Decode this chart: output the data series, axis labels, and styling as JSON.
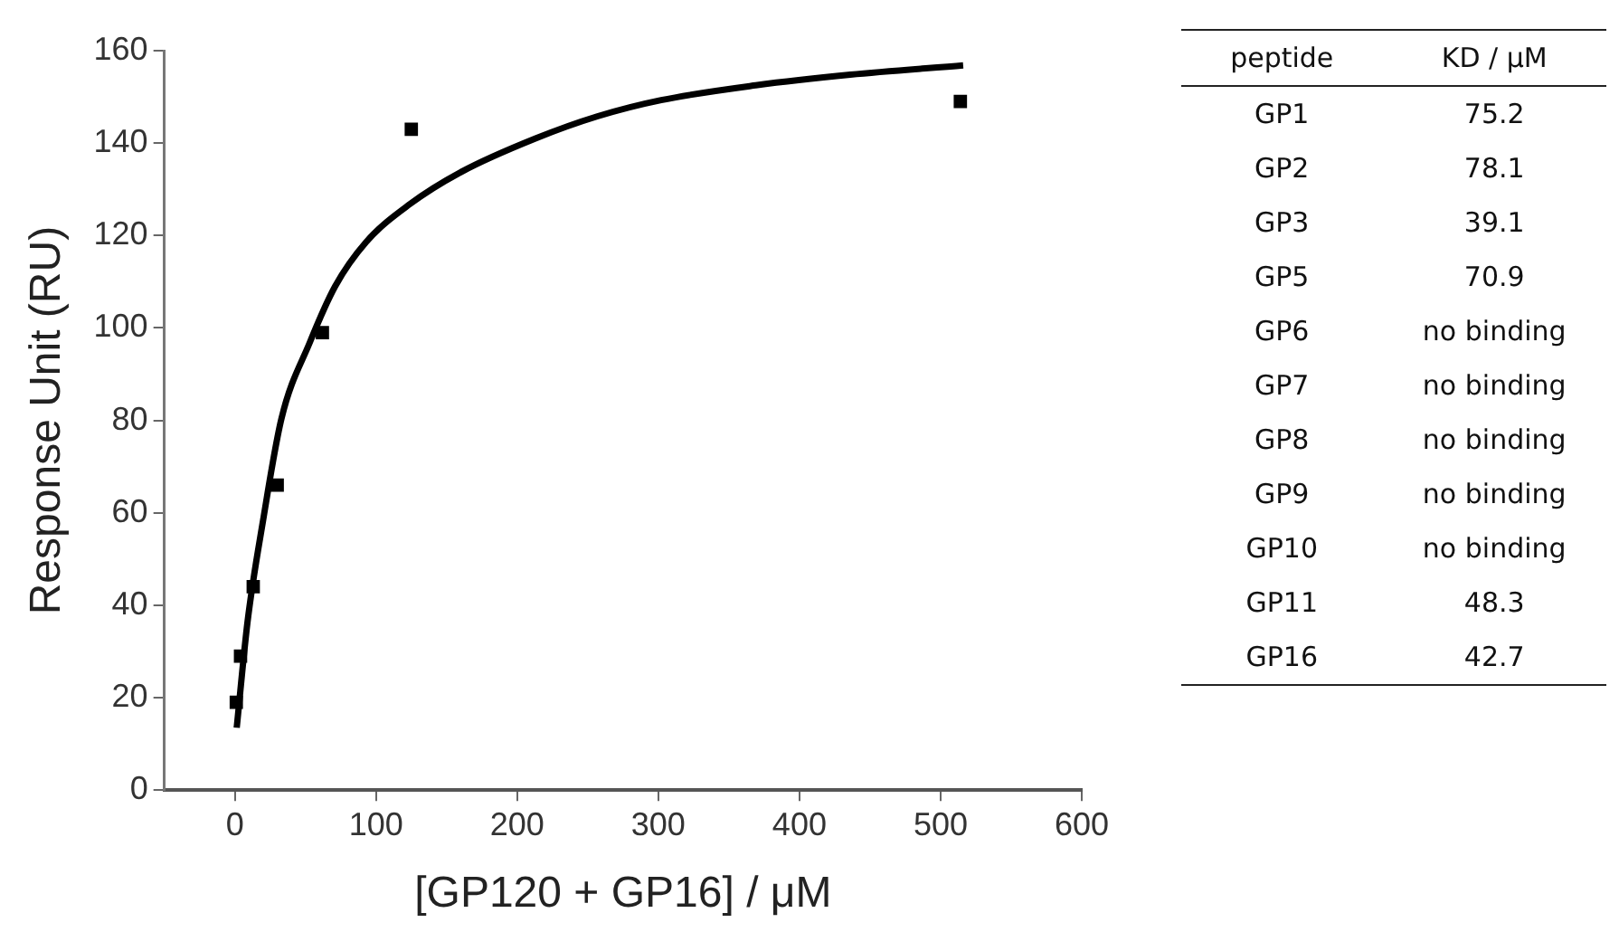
{
  "chart_data": [
    {
      "type": "scatter",
      "xlabel": "[GP120 + GP16] / μM",
      "ylabel": "Response Unit (RU)",
      "xlim": [
        -50,
        600
      ],
      "ylim": [
        0,
        160
      ],
      "xticks": [
        0,
        100,
        200,
        300,
        400,
        500,
        600
      ],
      "yticks": [
        0,
        20,
        40,
        60,
        80,
        100,
        120,
        140,
        160
      ],
      "grid": false,
      "legend": false,
      "series": [
        {
          "type": "scatter",
          "color": "#000000",
          "marker": "square",
          "x": [
            1,
            4,
            13,
            30,
            62,
            125,
            514
          ],
          "values": [
            19,
            29,
            44,
            66,
            99,
            143,
            149
          ]
        },
        {
          "type": "line",
          "color": "#000000",
          "marker": "none",
          "line_style": "solid",
          "x": [
            1.3,
            9,
            20,
            33,
            53,
            71,
            93,
            124,
            160,
            213,
            257,
            302,
            369,
            436,
            516
          ],
          "values": [
            13.5,
            36.5,
            58.4,
            80.4,
            96.8,
            109,
            118.6,
            126.8,
            133.7,
            141,
            145.8,
            149.3,
            152.5,
            154.8,
            156.8
          ]
        }
      ]
    },
    {
      "type": "other",
      "xlabel": "peptide",
      "ylabel": "KD / μM",
      "categories": [
        "GP1",
        "GP2",
        "GP3",
        "GP5",
        "GP6",
        "GP7",
        "GP8",
        "GP9",
        "GP10",
        "GP11",
        "GP16"
      ],
      "value_labels": [
        "75.2",
        "78.1",
        "39.1",
        "70.9",
        "no binding",
        "no binding",
        "no binding",
        "no binding",
        "no binding",
        "48.3",
        "42.7"
      ]
    }
  ]
}
